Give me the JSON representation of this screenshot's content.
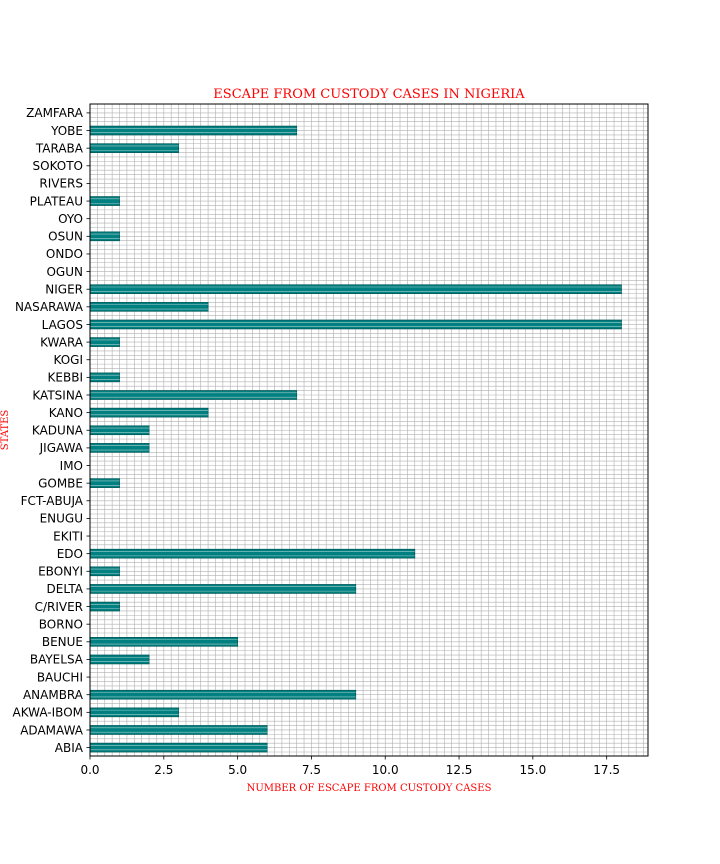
{
  "chart_data": {
    "type": "bar",
    "orientation": "horizontal",
    "title": "ESCAPE FROM CUSTODY CASES IN NIGERIA",
    "xlabel": "NUMBER OF ESCAPE FROM CUSTODY CASES",
    "ylabel": "STATES",
    "xlim": [
      0,
      18.9
    ],
    "xticks": [
      "0.0",
      "2.5",
      "5.0",
      "7.5",
      "10.0",
      "12.5",
      "15.0",
      "17.5"
    ],
    "grid": true,
    "categories": [
      "ABIA",
      "ADAMAWA",
      "AKWA-IBOM",
      "ANAMBRA",
      "BAUCHI",
      "BAYELSA",
      "BENUE",
      "BORNO",
      "C/RIVER",
      "DELTA",
      "EBONYI",
      "EDO",
      "EKITI",
      "ENUGU",
      "FCT-ABUJA",
      "GOMBE",
      "IMO",
      "JIGAWA",
      "KADUNA",
      "KANO",
      "KATSINA",
      "KEBBI",
      "KOGI",
      "KWARA",
      "LAGOS",
      "NASARAWA",
      "NIGER",
      "OGUN",
      "ONDO",
      "OSUN",
      "OYO",
      "PLATEAU",
      "RIVERS",
      "SOKOTO",
      "TARABA",
      "YOBE",
      "ZAMFARA"
    ],
    "values": [
      6,
      6,
      3,
      9,
      0,
      2,
      5,
      0,
      1,
      9,
      1,
      11,
      0,
      0,
      0,
      1,
      0,
      2,
      2,
      4,
      7,
      1,
      0,
      1,
      18,
      4,
      18,
      0,
      0,
      1,
      0,
      1,
      0,
      0,
      3,
      7,
      0
    ],
    "colors": {
      "bar": "#008080",
      "title": "#ff0000",
      "grid": "#b0b0b0"
    }
  }
}
